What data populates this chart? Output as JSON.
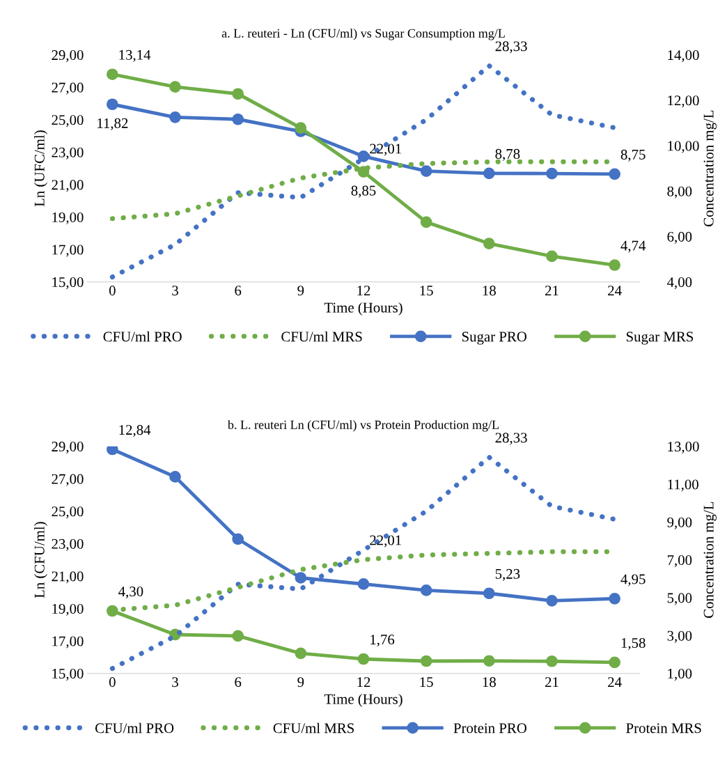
{
  "chart_data": [
    {
      "type": "line",
      "title": "a. L. reuteri - Ln (CFU/ml) vs Sugar Consumption mg/L",
      "xlabel": "Time (Hours)",
      "ylabel": "Ln (UFC/ml)",
      "y2label": "Concentration mg/L",
      "categories": [
        "0",
        "3",
        "6",
        "9",
        "12",
        "15",
        "18",
        "21",
        "24"
      ],
      "ylim": [
        15,
        29
      ],
      "yticks": [
        {
          "value": 15,
          "label": "15,00"
        },
        {
          "value": 17,
          "label": "17,00"
        },
        {
          "value": 19,
          "label": "19,00"
        },
        {
          "value": 21,
          "label": "21,00"
        },
        {
          "value": 23,
          "label": "23,00"
        },
        {
          "value": 25,
          "label": "25,00"
        },
        {
          "value": 27,
          "label": "27,00"
        },
        {
          "value": 29,
          "label": "29,00"
        }
      ],
      "y2lim": [
        4,
        14
      ],
      "y2ticks": [
        {
          "value": 4,
          "label": "4,00"
        },
        {
          "value": 6,
          "label": "6,00"
        },
        {
          "value": 8,
          "label": "8,00"
        },
        {
          "value": 10,
          "label": "10,00"
        },
        {
          "value": 12,
          "label": "12,00"
        },
        {
          "value": 14,
          "label": "14,00"
        }
      ],
      "grid": false,
      "legend": "bottom",
      "series": [
        {
          "name": "CFU/ml PRO",
          "color": "#4472c4",
          "line_style": "dotted",
          "marker": "none",
          "values": [
            15.3,
            17.3,
            20.5,
            20.2,
            22.6,
            25.0,
            28.33,
            25.3,
            24.5
          ],
          "value_labels": [
            null,
            null,
            null,
            null,
            null,
            null,
            "28,33",
            null,
            null
          ]
        },
        {
          "name": "CFU/ml MRS",
          "color": "#70ad47",
          "line_style": "dotted",
          "marker": "none",
          "values": [
            18.9,
            19.2,
            20.3,
            21.4,
            22.01,
            22.3,
            22.4,
            22.4,
            22.4
          ],
          "value_labels": [
            null,
            null,
            null,
            null,
            "22,01",
            null,
            null,
            null,
            null
          ]
        },
        {
          "name": "Sugar PRO",
          "color": "#4472c4",
          "line_style": "solid",
          "marker": "circle",
          "axis": "y2",
          "values": [
            11.82,
            11.25,
            11.16,
            10.63,
            9.53,
            8.88,
            8.78,
            8.77,
            8.75
          ],
          "value_labels": [
            "11,82",
            null,
            null,
            null,
            null,
            null,
            "8,78",
            null,
            "8,75"
          ]
        },
        {
          "name": "Sugar MRS",
          "color": "#70ad47",
          "line_style": "solid",
          "marker": "circle",
          "axis": "y2",
          "values": [
            13.14,
            12.59,
            12.28,
            10.78,
            8.85,
            6.63,
            5.69,
            5.13,
            4.74
          ],
          "value_labels": [
            "13,14",
            null,
            null,
            null,
            "8,85",
            null,
            null,
            null,
            "4,74"
          ]
        }
      ]
    },
    {
      "type": "line",
      "title": "b. L. reuteri Ln (CFU/ml) vs Protein Production mg/L",
      "xlabel": "Time (Hours)",
      "ylabel": "Ln (CFU/ml)",
      "y2label": "Concentration mg/L",
      "categories": [
        "0",
        "3",
        "6",
        "9",
        "12",
        "15",
        "18",
        "21",
        "24"
      ],
      "ylim": [
        15,
        29
      ],
      "yticks": [
        {
          "value": 15,
          "label": "15,00"
        },
        {
          "value": 17,
          "label": "17,00"
        },
        {
          "value": 19,
          "label": "19,00"
        },
        {
          "value": 21,
          "label": "21,00"
        },
        {
          "value": 23,
          "label": "23,00"
        },
        {
          "value": 25,
          "label": "25,00"
        },
        {
          "value": 27,
          "label": "27,00"
        },
        {
          "value": 29,
          "label": "29,00"
        }
      ],
      "y2lim": [
        1,
        13
      ],
      "y2ticks": [
        {
          "value": 1,
          "label": "1,00"
        },
        {
          "value": 3,
          "label": "3,00"
        },
        {
          "value": 5,
          "label": "5,00"
        },
        {
          "value": 7,
          "label": "7,00"
        },
        {
          "value": 9,
          "label": "9,00"
        },
        {
          "value": 11,
          "label": "11,00"
        },
        {
          "value": 13,
          "label": "13,00"
        }
      ],
      "grid": false,
      "legend": "bottom",
      "series": [
        {
          "name": "CFU/ml PRO",
          "color": "#4472c4",
          "line_style": "dotted",
          "marker": "none",
          "values": [
            15.3,
            17.3,
            20.5,
            20.2,
            22.6,
            25.0,
            28.33,
            25.3,
            24.5
          ],
          "value_labels": [
            null,
            null,
            null,
            null,
            null,
            null,
            "28,33",
            null,
            null
          ]
        },
        {
          "name": "CFU/ml MRS",
          "color": "#70ad47",
          "line_style": "dotted",
          "marker": "none",
          "values": [
            18.9,
            19.2,
            20.3,
            21.4,
            22.01,
            22.3,
            22.4,
            22.5,
            22.5
          ],
          "value_labels": [
            null,
            null,
            null,
            null,
            "22,01",
            null,
            null,
            null,
            null
          ]
        },
        {
          "name": "Protein PRO",
          "color": "#4472c4",
          "line_style": "solid",
          "marker": "circle",
          "axis": "y2",
          "values": [
            12.84,
            11.39,
            8.1,
            6.05,
            5.72,
            5.39,
            5.23,
            4.84,
            4.95
          ],
          "value_labels": [
            "12,84",
            null,
            null,
            null,
            null,
            null,
            "5,23",
            null,
            "4,95"
          ]
        },
        {
          "name": "Protein MRS",
          "color": "#70ad47",
          "line_style": "solid",
          "marker": "circle",
          "axis": "y2",
          "values": [
            4.3,
            3.05,
            2.98,
            2.06,
            1.76,
            1.65,
            1.66,
            1.64,
            1.58
          ],
          "value_labels": [
            "4,30",
            null,
            null,
            null,
            "1,76",
            null,
            null,
            null,
            "1,58"
          ]
        }
      ]
    }
  ]
}
